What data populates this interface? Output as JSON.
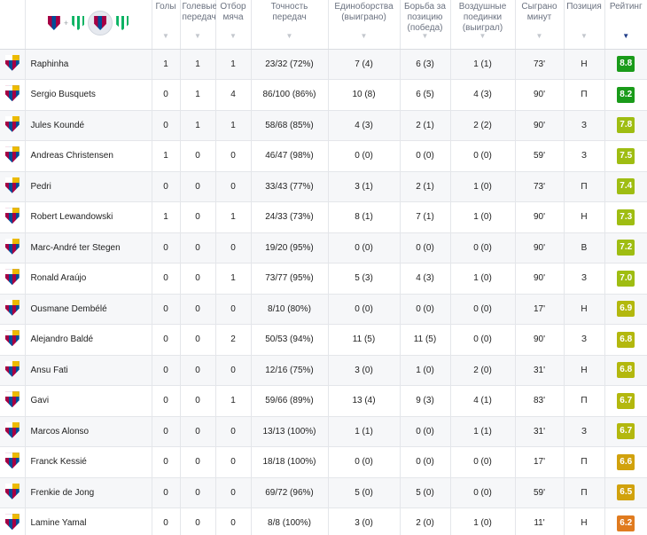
{
  "header": {
    "columns": [
      {
        "key": "goals",
        "label": "Голы"
      },
      {
        "key": "assists",
        "label": "Голевые передачи"
      },
      {
        "key": "tackles",
        "label": "Отбор мяча"
      },
      {
        "key": "pass_acc",
        "label": "Точность передач"
      },
      {
        "key": "duels",
        "label": "Единоборства (выиграно)"
      },
      {
        "key": "ground",
        "label": "Борьба за позицию (победа)"
      },
      {
        "key": "aerial",
        "label": "Воздушные поединки (выиграл)"
      },
      {
        "key": "minutes",
        "label": "Сыграно минут"
      },
      {
        "key": "position",
        "label": "Позиция"
      },
      {
        "key": "rating",
        "label": "Рейтинг"
      }
    ],
    "sort_icon": "▼",
    "active_sort_icon": "▼",
    "plus_sign": "+"
  },
  "colors": {
    "dark_green": "#1a9b1a",
    "green": "#4caf1a",
    "yellow_green": "#9fbd12",
    "olive": "#b3b80e",
    "amber": "#d1a20d",
    "orange": "#e07b1f"
  },
  "players": [
    {
      "name": "Raphinha",
      "goals": "1",
      "assists": "1",
      "tackles": "1",
      "pass_acc": "23/32 (72%)",
      "duels": "7 (4)",
      "ground": "6 (3)",
      "aerial": "1 (1)",
      "minutes": "73'",
      "position": "Н",
      "rating": "8.8",
      "rating_color": "#1a9b1a"
    },
    {
      "name": "Sergio Busquets",
      "goals": "0",
      "assists": "1",
      "tackles": "4",
      "pass_acc": "86/100 (86%)",
      "duels": "10 (8)",
      "ground": "6 (5)",
      "aerial": "4 (3)",
      "minutes": "90'",
      "position": "П",
      "rating": "8.2",
      "rating_color": "#1a9b1a"
    },
    {
      "name": "Jules Koundé",
      "goals": "0",
      "assists": "1",
      "tackles": "1",
      "pass_acc": "58/68 (85%)",
      "duels": "4 (3)",
      "ground": "2 (1)",
      "aerial": "2 (2)",
      "minutes": "90'",
      "position": "З",
      "rating": "7.8",
      "rating_color": "#9fbd12"
    },
    {
      "name": "Andreas Christensen",
      "goals": "1",
      "assists": "0",
      "tackles": "0",
      "pass_acc": "46/47 (98%)",
      "duels": "0 (0)",
      "ground": "0 (0)",
      "aerial": "0 (0)",
      "minutes": "59'",
      "position": "З",
      "rating": "7.5",
      "rating_color": "#9fbd12"
    },
    {
      "name": "Pedri",
      "goals": "0",
      "assists": "0",
      "tackles": "0",
      "pass_acc": "33/43 (77%)",
      "duels": "3 (1)",
      "ground": "2 (1)",
      "aerial": "1 (0)",
      "minutes": "73'",
      "position": "П",
      "rating": "7.4",
      "rating_color": "#9fbd12"
    },
    {
      "name": "Robert Lewandowski",
      "goals": "1",
      "assists": "0",
      "tackles": "1",
      "pass_acc": "24/33 (73%)",
      "duels": "8 (1)",
      "ground": "7 (1)",
      "aerial": "1 (0)",
      "minutes": "90'",
      "position": "Н",
      "rating": "7.3",
      "rating_color": "#9fbd12"
    },
    {
      "name": "Marc-André ter Stegen",
      "goals": "0",
      "assists": "0",
      "tackles": "0",
      "pass_acc": "19/20 (95%)",
      "duels": "0 (0)",
      "ground": "0 (0)",
      "aerial": "0 (0)",
      "minutes": "90'",
      "position": "В",
      "rating": "7.2",
      "rating_color": "#9fbd12"
    },
    {
      "name": "Ronald Araújo",
      "goals": "0",
      "assists": "0",
      "tackles": "1",
      "pass_acc": "73/77 (95%)",
      "duels": "5 (3)",
      "ground": "4 (3)",
      "aerial": "1 (0)",
      "minutes": "90'",
      "position": "З",
      "rating": "7.0",
      "rating_color": "#9fbd12"
    },
    {
      "name": "Ousmane Dembélé",
      "goals": "0",
      "assists": "0",
      "tackles": "0",
      "pass_acc": "8/10 (80%)",
      "duels": "0 (0)",
      "ground": "0 (0)",
      "aerial": "0 (0)",
      "minutes": "17'",
      "position": "Н",
      "rating": "6.9",
      "rating_color": "#b3b80e"
    },
    {
      "name": "Alejandro Baldé",
      "goals": "0",
      "assists": "0",
      "tackles": "2",
      "pass_acc": "50/53 (94%)",
      "duels": "11 (5)",
      "ground": "11 (5)",
      "aerial": "0 (0)",
      "minutes": "90'",
      "position": "З",
      "rating": "6.8",
      "rating_color": "#b3b80e"
    },
    {
      "name": "Ansu Fati",
      "goals": "0",
      "assists": "0",
      "tackles": "0",
      "pass_acc": "12/16 (75%)",
      "duels": "3 (0)",
      "ground": "1 (0)",
      "aerial": "2 (0)",
      "minutes": "31'",
      "position": "Н",
      "rating": "6.8",
      "rating_color": "#b3b80e"
    },
    {
      "name": "Gavi",
      "goals": "0",
      "assists": "0",
      "tackles": "1",
      "pass_acc": "59/66 (89%)",
      "duels": "13 (4)",
      "ground": "9 (3)",
      "aerial": "4 (1)",
      "minutes": "83'",
      "position": "П",
      "rating": "6.7",
      "rating_color": "#b3b80e"
    },
    {
      "name": "Marcos Alonso",
      "goals": "0",
      "assists": "0",
      "tackles": "0",
      "pass_acc": "13/13 (100%)",
      "duels": "1 (1)",
      "ground": "0 (0)",
      "aerial": "1 (1)",
      "minutes": "31'",
      "position": "З",
      "rating": "6.7",
      "rating_color": "#b3b80e"
    },
    {
      "name": "Franck Kessié",
      "goals": "0",
      "assists": "0",
      "tackles": "0",
      "pass_acc": "18/18 (100%)",
      "duels": "0 (0)",
      "ground": "0 (0)",
      "aerial": "0 (0)",
      "minutes": "17'",
      "position": "П",
      "rating": "6.6",
      "rating_color": "#d1a20d"
    },
    {
      "name": "Frenkie de Jong",
      "goals": "0",
      "assists": "0",
      "tackles": "0",
      "pass_acc": "69/72 (96%)",
      "duels": "5 (0)",
      "ground": "5 (0)",
      "aerial": "0 (0)",
      "minutes": "59'",
      "position": "П",
      "rating": "6.5",
      "rating_color": "#d1a20d"
    },
    {
      "name": "Lamine Yamal",
      "goals": "0",
      "assists": "0",
      "tackles": "0",
      "pass_acc": "8/8 (100%)",
      "duels": "3 (0)",
      "ground": "2 (0)",
      "aerial": "1 (0)",
      "minutes": "11'",
      "position": "Н",
      "rating": "6.2",
      "rating_color": "#e07b1f"
    }
  ]
}
